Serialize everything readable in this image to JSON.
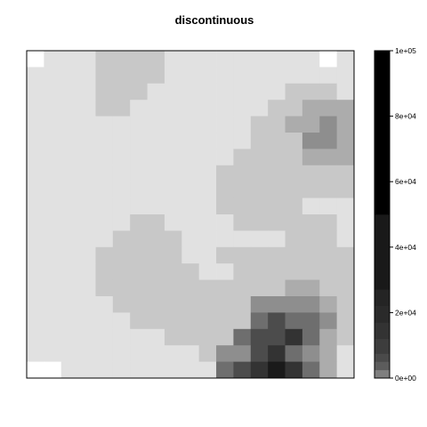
{
  "chart_data": {
    "type": "heatmap",
    "title": "discontinuous",
    "grid": false,
    "x_ticks": [],
    "y_ticks": [],
    "colorbar": {
      "placement": "right",
      "range": [
        0,
        100000
      ],
      "ticks": [
        0,
        20000,
        40000,
        60000,
        80000,
        100000
      ],
      "tick_labels": [
        "0e+00",
        "2e+04",
        "4e+04",
        "6e+04",
        "8e+04",
        "1e+05"
      ],
      "bands": [
        {
          "from": 0,
          "to": 2500,
          "color": "#7f7f7f"
        },
        {
          "from": 2500,
          "to": 5000,
          "color": "#5c5c5c"
        },
        {
          "from": 5000,
          "to": 7500,
          "color": "#4a4a4a"
        },
        {
          "from": 7500,
          "to": 12000,
          "color": "#3d3d3d"
        },
        {
          "from": 12000,
          "to": 17000,
          "color": "#333333"
        },
        {
          "from": 17000,
          "to": 22000,
          "color": "#2a2a2a"
        },
        {
          "from": 22000,
          "to": 27000,
          "color": "#242424"
        },
        {
          "from": 27000,
          "to": 50000,
          "color": "#191919"
        },
        {
          "from": 50000,
          "to": 100000,
          "color": "#000000"
        }
      ]
    },
    "legend": "colorbar right",
    "level_colors": {
      "0": "#ffffff",
      "1": "#e1e1e1",
      "2": "#c8c8c8",
      "3": "#acacac",
      "4": "#8e8e8e",
      "5": "#6e6e6e",
      "6": "#4c4c4c",
      "7": "#333333",
      "8": "#1a1a1a"
    },
    "cells": [
      "0111222211111111101",
      "1111222211111111111",
      "1111222111111112221",
      "1111221111111122333",
      "1111111111111223343",
      "1111111111111222443",
      "1111111111112222333",
      "1111111111122222222",
      "1111111111122222222",
      "1111111111122222111",
      "1111112211112222221",
      "1111122221111112221",
      "1111222221122222222",
      "1111222222112222222",
      "1111222222222223322",
      "1111122222222444432",
      "1111112222222565542",
      "1111111122225667532",
      "1111111111244675431",
      "0011111111156787531"
    ]
  }
}
